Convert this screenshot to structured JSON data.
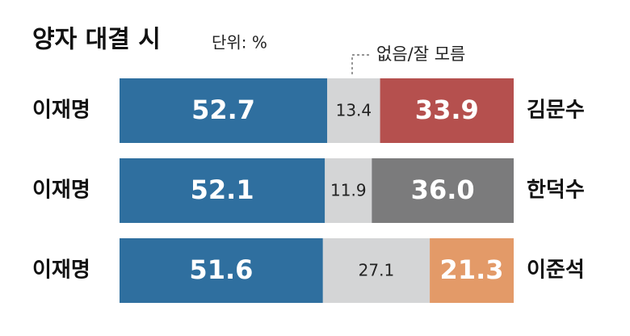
{
  "chart_data": {
    "type": "bar",
    "orientation": "horizontal",
    "stacked": true,
    "title": "양자 대결 시",
    "subtitle": "단위: %",
    "categories": [
      "이재명",
      "이재명",
      "이재명"
    ],
    "right_labels": [
      "김문수",
      "한덕수",
      "이준석"
    ],
    "xlim": [
      0,
      100
    ],
    "series": [
      {
        "color": "#2f6f9f",
        "values": [
          52.7,
          52.1,
          51.6
        ]
      },
      {
        "name": "없음/잘 모름",
        "color": "#d4d5d6",
        "values": [
          13.4,
          11.9,
          27.1
        ]
      },
      {
        "colors": [
          "#b5504e",
          "#7b7b7c",
          "#e39a68"
        ],
        "values": [
          33.9,
          36,
          21.3
        ],
        "value_labels": [
          "33.9",
          "36.0",
          "21.3"
        ]
      }
    ]
  }
}
